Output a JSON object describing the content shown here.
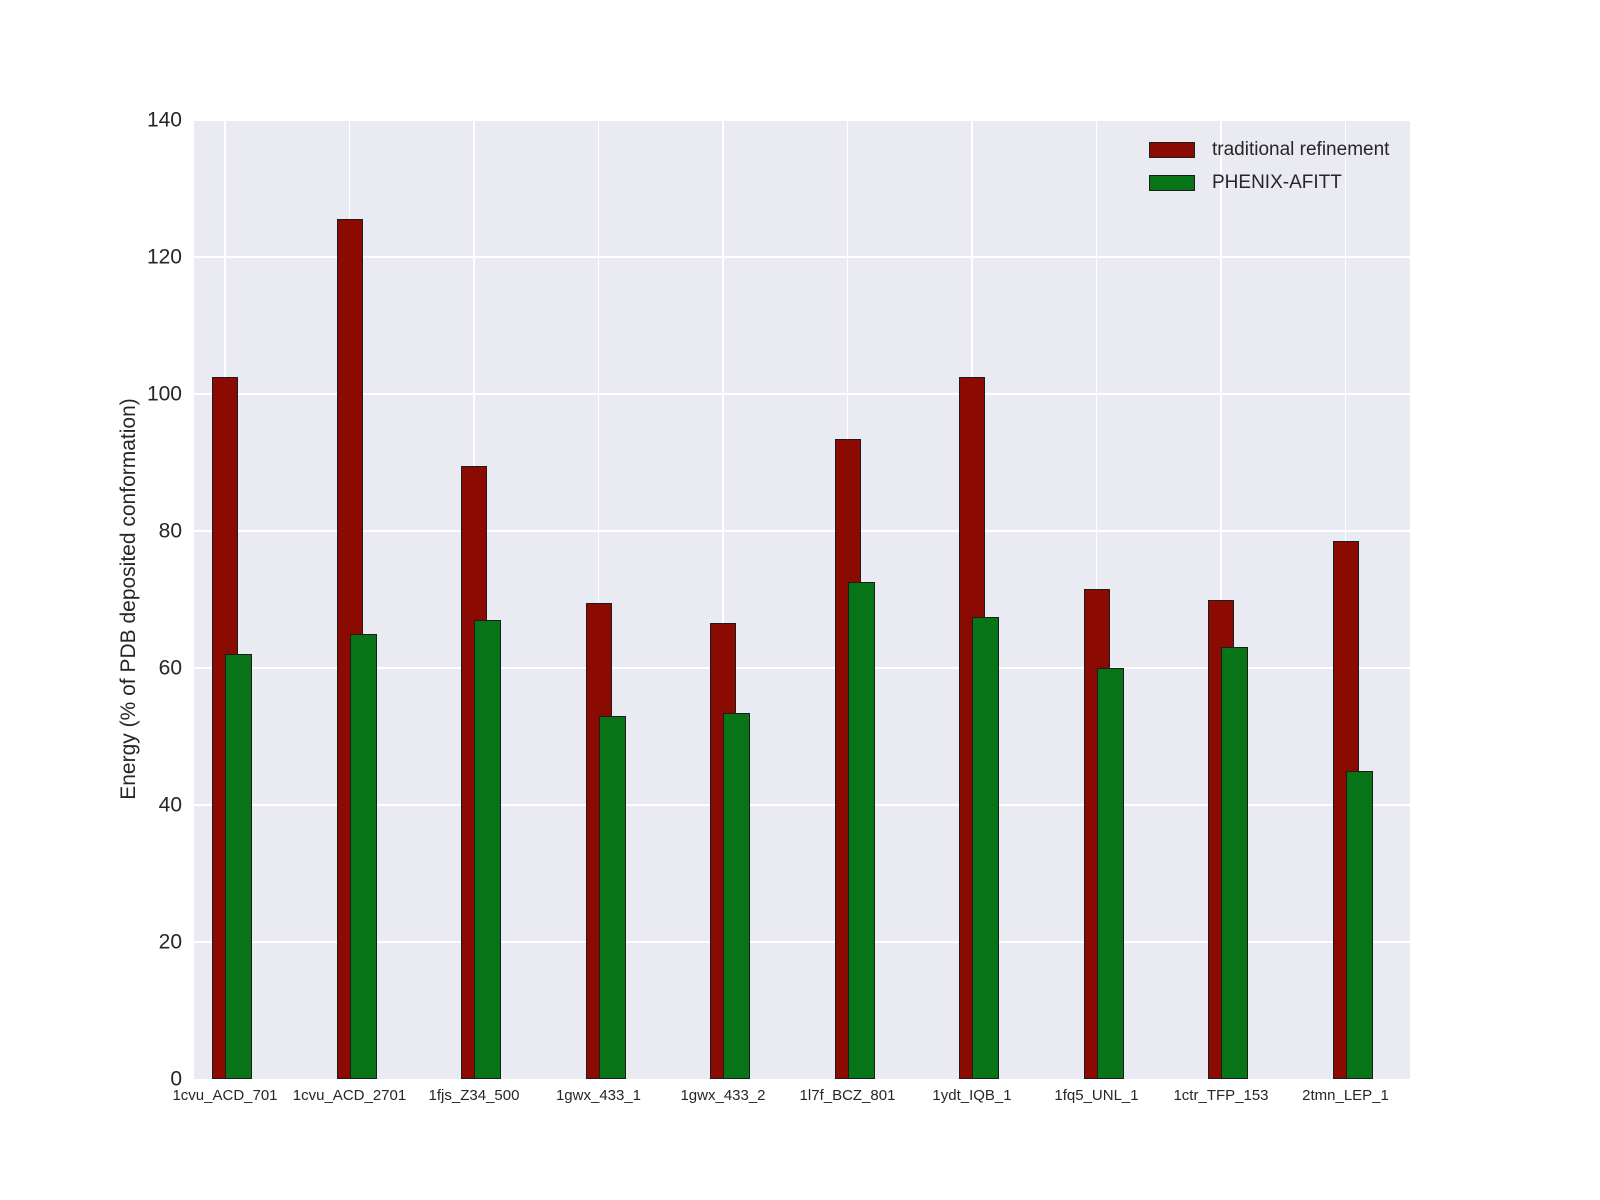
{
  "figure": {
    "background": "#ffffff",
    "plot_background": "#eaeaf2",
    "grid_color": "#ffffff",
    "text_color": "#262626",
    "bar_edge_color": "#1c1c1c"
  },
  "legend": {
    "items": [
      {
        "label": "traditional refinement",
        "color": "#8b0b03"
      },
      {
        "label": "PHENIX-AFITT",
        "color": "#087418"
      }
    ]
  },
  "chart_data": {
    "type": "bar",
    "title": "",
    "xlabel": "",
    "ylabel": "Energy (% of PDB deposited conformation)",
    "ylim": [
      0,
      140
    ],
    "yticks": [
      0,
      20,
      40,
      60,
      80,
      100,
      120,
      140
    ],
    "grid": true,
    "legend_position": "upper right",
    "categories": [
      "1cvu_ACD_701",
      "1cvu_ACD_2701",
      "1fjs_Z34_500",
      "1gwx_433_1",
      "1gwx_433_2",
      "1l7f_BCZ_801",
      "1ydt_IQB_1",
      "1fq5_UNL_1",
      "1ctr_TFP_153",
      "2tmn_LEP_1"
    ],
    "series": [
      {
        "name": "traditional refinement",
        "color": "#8b0b03",
        "values": [
          102.5,
          125.5,
          89.5,
          69.5,
          66.5,
          93.5,
          102.5,
          71.5,
          70,
          78.5
        ]
      },
      {
        "name": "PHENIX-AFITT",
        "color": "#087418",
        "values": [
          62,
          65,
          67,
          53,
          53.5,
          72.5,
          67.5,
          60,
          63,
          45
        ]
      }
    ]
  }
}
